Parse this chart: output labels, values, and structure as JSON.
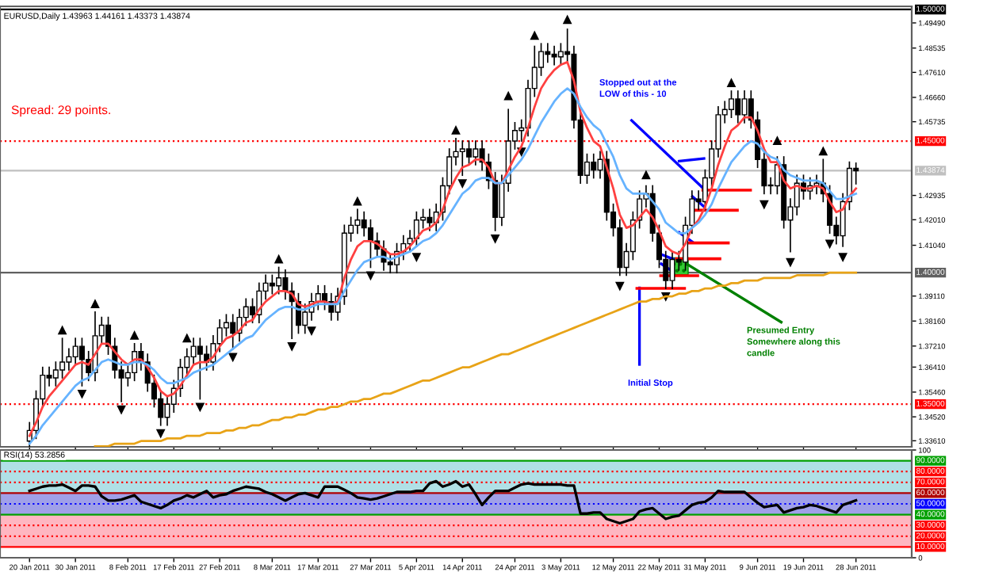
{
  "chart_data": [
    {
      "type": "candlestick",
      "title": "EURUSD,Daily 1.43963 1.44161 1.43373 1.43874",
      "categories": [
        null,
        null,
        null,
        null,
        null,
        null,
        null,
        null,
        null,
        null,
        null,
        null,
        null,
        null,
        null,
        null,
        null,
        null,
        null,
        null,
        null,
        null,
        null,
        null,
        null,
        null,
        null,
        null,
        null,
        null,
        null,
        null,
        null,
        null,
        null,
        null,
        null,
        null,
        null,
        null,
        null,
        null,
        null,
        null,
        null,
        null,
        null,
        null,
        null,
        null,
        null,
        null,
        null,
        null,
        null,
        null,
        null,
        null,
        null,
        null,
        null,
        null,
        null,
        null,
        null,
        null,
        null,
        null,
        null,
        null,
        null,
        null,
        null,
        null,
        null,
        null,
        null,
        null,
        null,
        null,
        null,
        null,
        null,
        null,
        null,
        null,
        null,
        null,
        null,
        null,
        null,
        null,
        null,
        null,
        null,
        null,
        null,
        null,
        null,
        null,
        null,
        null,
        null,
        null,
        null,
        null,
        null,
        null,
        null,
        null,
        null,
        null,
        null,
        null,
        null,
        null,
        null,
        null,
        null,
        null,
        null,
        null,
        null,
        null,
        null,
        null,
        null
      ],
      "series": [
        {
          "color": "#000000",
          "ohlc": [
            [
              1.336,
              1.343,
              1.333,
              1.34
            ],
            [
              1.34,
              1.355,
              1.337,
              1.352
            ],
            [
              1.352,
              1.364,
              1.349,
              1.361
            ],
            [
              1.361,
              1.364,
              1.357,
              1.36
            ],
            [
              1.36,
              1.366,
              1.357,
              1.363
            ],
            [
              1.363,
              1.375,
              1.36,
              1.366
            ],
            [
              1.366,
              1.371,
              1.363,
              1.368
            ],
            [
              1.368,
              1.375,
              1.365,
              1.372
            ],
            [
              1.372,
              1.375,
              1.357,
              1.367
            ],
            [
              1.367,
              1.37,
              1.359,
              1.362
            ],
            [
              1.362,
              1.385,
              1.359,
              1.376
            ],
            [
              1.376,
              1.383,
              1.373,
              1.38
            ],
            [
              1.38,
              1.383,
              1.369,
              1.372
            ],
            [
              1.372,
              1.375,
              1.36,
              1.363
            ],
            [
              1.363,
              1.366,
              1.351,
              1.36
            ],
            [
              1.36,
              1.365,
              1.357,
              1.362
            ],
            [
              1.362,
              1.373,
              1.359,
              1.37
            ],
            [
              1.37,
              1.373,
              1.363,
              1.366
            ],
            [
              1.366,
              1.369,
              1.355,
              1.358
            ],
            [
              1.358,
              1.361,
              1.349,
              1.352
            ],
            [
              1.352,
              1.355,
              1.342,
              1.345
            ],
            [
              1.345,
              1.353,
              1.342,
              1.35
            ],
            [
              1.35,
              1.359,
              1.347,
              1.356
            ],
            [
              1.356,
              1.367,
              1.353,
              1.364
            ],
            [
              1.364,
              1.371,
              1.361,
              1.368
            ],
            [
              1.368,
              1.375,
              1.365,
              1.372
            ],
            [
              1.372,
              1.375,
              1.352,
              1.369
            ],
            [
              1.369,
              1.372,
              1.363,
              1.366
            ],
            [
              1.366,
              1.376,
              1.363,
              1.373
            ],
            [
              1.373,
              1.382,
              1.37,
              1.379
            ],
            [
              1.379,
              1.384,
              1.376,
              1.381
            ],
            [
              1.381,
              1.384,
              1.371,
              1.377
            ],
            [
              1.377,
              1.386,
              1.374,
              1.383
            ],
            [
              1.383,
              1.39,
              1.38,
              1.387
            ],
            [
              1.387,
              1.39,
              1.381,
              1.384
            ],
            [
              1.384,
              1.396,
              1.381,
              1.393
            ],
            [
              1.393,
              1.399,
              1.39,
              1.396
            ],
            [
              1.396,
              1.399,
              1.392,
              1.395
            ],
            [
              1.395,
              1.402,
              1.392,
              1.398
            ],
            [
              1.398,
              1.401,
              1.39,
              1.393
            ],
            [
              1.393,
              1.396,
              1.375,
              1.389
            ],
            [
              1.389,
              1.392,
              1.377,
              1.38
            ],
            [
              1.38,
              1.388,
              1.377,
              1.385
            ],
            [
              1.385,
              1.392,
              1.382,
              1.389
            ],
            [
              1.389,
              1.395,
              1.386,
              1.392
            ],
            [
              1.392,
              1.395,
              1.386,
              1.389
            ],
            [
              1.389,
              1.392,
              1.382,
              1.385
            ],
            [
              1.385,
              1.394,
              1.382,
              1.391
            ],
            [
              1.391,
              1.418,
              1.388,
              1.415
            ],
            [
              1.415,
              1.421,
              1.412,
              1.418
            ],
            [
              1.418,
              1.424,
              1.415,
              1.42
            ],
            [
              1.42,
              1.423,
              1.414,
              1.417
            ],
            [
              1.417,
              1.42,
              1.402,
              1.412
            ],
            [
              1.412,
              1.415,
              1.406,
              1.409
            ],
            [
              1.409,
              1.412,
              1.401,
              1.404
            ],
            [
              1.404,
              1.407,
              1.4,
              1.403
            ],
            [
              1.403,
              1.411,
              1.4,
              1.408
            ],
            [
              1.408,
              1.414,
              1.405,
              1.411
            ],
            [
              1.411,
              1.416,
              1.408,
              1.413
            ],
            [
              1.413,
              1.423,
              1.41,
              1.42
            ],
            [
              1.42,
              1.424,
              1.417,
              1.421
            ],
            [
              1.421,
              1.424,
              1.416,
              1.419
            ],
            [
              1.419,
              1.426,
              1.416,
              1.423
            ],
            [
              1.423,
              1.436,
              1.42,
              1.433
            ],
            [
              1.433,
              1.447,
              1.43,
              1.444
            ],
            [
              1.444,
              1.451,
              1.441,
              1.446
            ],
            [
              1.446,
              1.45,
              1.437,
              1.447
            ],
            [
              1.447,
              1.45,
              1.441,
              1.444
            ],
            [
              1.444,
              1.45,
              1.441,
              1.447
            ],
            [
              1.447,
              1.45,
              1.439,
              1.442
            ],
            [
              1.442,
              1.445,
              1.432,
              1.435
            ],
            [
              1.435,
              1.438,
              1.416,
              1.421
            ],
            [
              1.421,
              1.437,
              1.418,
              1.434
            ],
            [
              1.434,
              1.462,
              1.431,
              1.45
            ],
            [
              1.45,
              1.457,
              1.447,
              1.454
            ],
            [
              1.454,
              1.458,
              1.45,
              1.455
            ],
            [
              1.455,
              1.473,
              1.452,
              1.47
            ],
            [
              1.47,
              1.486,
              1.467,
              1.478
            ],
            [
              1.478,
              1.487,
              1.475,
              1.484
            ],
            [
              1.484,
              1.487,
              1.48,
              1.483
            ],
            [
              1.483,
              1.486,
              1.479,
              1.482
            ],
            [
              1.482,
              1.487,
              1.479,
              1.484
            ],
            [
              1.484,
              1.4925,
              1.48,
              1.483
            ],
            [
              1.483,
              1.486,
              1.455,
              1.458
            ],
            [
              1.458,
              1.461,
              1.434,
              1.437
            ],
            [
              1.437,
              1.445,
              1.434,
              1.442
            ],
            [
              1.442,
              1.445,
              1.436,
              1.439
            ],
            [
              1.439,
              1.446,
              1.436,
              1.443
            ],
            [
              1.443,
              1.446,
              1.42,
              1.423
            ],
            [
              1.423,
              1.426,
              1.414,
              1.417
            ],
            [
              1.417,
              1.42,
              1.399,
              1.402
            ],
            [
              1.402,
              1.411,
              1.399,
              1.408
            ],
            [
              1.408,
              1.423,
              1.405,
              1.42
            ],
            [
              1.42,
              1.431,
              1.417,
              1.428
            ],
            [
              1.428,
              1.433,
              1.425,
              1.43
            ],
            [
              1.43,
              1.433,
              1.412,
              1.415
            ],
            [
              1.415,
              1.418,
              1.402,
              1.405
            ],
            [
              1.405,
              1.408,
              1.394,
              1.397
            ],
            [
              1.397,
              1.408,
              1.394,
              1.405
            ],
            [
              1.405,
              1.408,
              1.401,
              1.404
            ],
            [
              1.404,
              1.421,
              1.401,
              1.418
            ],
            [
              1.418,
              1.431,
              1.415,
              1.428
            ],
            [
              1.428,
              1.431,
              1.424,
              1.427
            ],
            [
              1.427,
              1.439,
              1.424,
              1.436
            ],
            [
              1.436,
              1.45,
              1.433,
              1.447
            ],
            [
              1.447,
              1.463,
              1.444,
              1.46
            ],
            [
              1.46,
              1.465,
              1.457,
              1.462
            ],
            [
              1.462,
              1.469,
              1.459,
              1.466
            ],
            [
              1.466,
              1.469,
              1.457,
              1.46
            ],
            [
              1.46,
              1.469,
              1.457,
              1.466
            ],
            [
              1.466,
              1.469,
              1.455,
              1.458
            ],
            [
              1.458,
              1.461,
              1.44,
              1.443
            ],
            [
              1.443,
              1.446,
              1.43,
              1.433
            ],
            [
              1.433,
              1.436,
              1.43,
              1.433
            ],
            [
              1.433,
              1.444,
              1.43,
              1.441
            ],
            [
              1.441,
              1.444,
              1.417,
              1.42
            ],
            [
              1.42,
              1.428,
              1.408,
              1.425
            ],
            [
              1.425,
              1.437,
              1.422,
              1.434
            ],
            [
              1.434,
              1.437,
              1.428,
              1.431
            ],
            [
              1.431,
              1.436,
              1.428,
              1.433
            ],
            [
              1.433,
              1.437,
              1.43,
              1.434
            ],
            [
              1.434,
              1.443,
              1.427,
              1.43
            ],
            [
              1.43,
              1.433,
              1.415,
              1.418
            ],
            [
              1.418,
              1.421,
              1.411,
              1.414
            ],
            [
              1.414,
              1.43,
              1.41,
              1.427
            ],
            [
              1.427,
              1.442,
              1.424,
              1.43963
            ],
            [
              1.43963,
              1.44161,
              1.43373,
              1.43874
            ]
          ]
        },
        {
          "type": "line",
          "color": "#ff4040",
          "values": [
            1.338,
            1.343,
            1.349,
            1.353,
            1.356,
            1.359,
            1.362,
            1.365,
            1.366,
            1.365,
            1.369,
            1.373,
            1.373,
            1.37,
            1.367,
            1.365,
            1.367,
            1.367,
            1.364,
            1.36,
            1.355,
            1.353,
            1.354,
            1.357,
            1.361,
            1.365,
            1.366,
            1.366,
            1.368,
            1.372,
            1.375,
            1.376,
            1.378,
            1.381,
            1.382,
            1.386,
            1.389,
            1.391,
            1.393,
            1.393,
            1.392,
            1.388,
            1.387,
            1.388,
            1.389,
            1.389,
            1.388,
            1.389,
            1.398,
            1.405,
            1.41,
            1.412,
            1.412,
            1.411,
            1.409,
            1.407,
            1.407,
            1.408,
            1.41,
            1.413,
            1.416,
            1.417,
            1.419,
            1.424,
            1.431,
            1.436,
            1.44,
            1.441,
            1.443,
            1.443,
            1.44,
            1.434,
            1.434,
            1.439,
            1.444,
            1.448,
            1.455,
            1.463,
            1.47,
            1.474,
            1.477,
            1.479,
            1.48,
            1.473,
            1.461,
            1.455,
            1.45,
            1.448,
            1.44,
            1.432,
            1.422,
            1.417,
            1.418,
            1.421,
            1.424,
            1.421,
            1.416,
            1.41,
            1.408,
            1.407,
            1.411,
            1.417,
            1.42,
            1.425,
            1.432,
            1.441,
            1.448,
            1.454,
            1.456,
            1.459,
            1.459,
            1.454,
            1.447,
            1.442,
            1.442,
            1.435,
            1.432,
            1.433,
            1.432,
            1.432,
            1.433,
            1.432,
            1.427,
            1.423,
            1.424,
            1.429,
            1.432
          ]
        },
        {
          "type": "line",
          "color": "#66b3ff",
          "values": [
            1.335,
            1.338,
            1.342,
            1.345,
            1.348,
            1.351,
            1.354,
            1.357,
            1.359,
            1.36,
            1.363,
            1.366,
            1.367,
            1.366,
            1.365,
            1.365,
            1.366,
            1.366,
            1.365,
            1.363,
            1.36,
            1.358,
            1.358,
            1.359,
            1.36,
            1.362,
            1.363,
            1.364,
            1.365,
            1.367,
            1.369,
            1.371,
            1.373,
            1.375,
            1.376,
            1.379,
            1.382,
            1.384,
            1.386,
            1.387,
            1.387,
            1.386,
            1.386,
            1.387,
            1.388,
            1.388,
            1.388,
            1.388,
            1.393,
            1.397,
            1.401,
            1.404,
            1.405,
            1.406,
            1.406,
            1.405,
            1.406,
            1.407,
            1.408,
            1.41,
            1.412,
            1.413,
            1.415,
            1.418,
            1.422,
            1.426,
            1.43,
            1.432,
            1.435,
            1.436,
            1.436,
            1.434,
            1.434,
            1.437,
            1.44,
            1.443,
            1.447,
            1.452,
            1.457,
            1.461,
            1.465,
            1.468,
            1.47,
            1.468,
            1.463,
            1.459,
            1.456,
            1.454,
            1.449,
            1.444,
            1.437,
            1.432,
            1.43,
            1.43,
            1.43,
            1.427,
            1.424,
            1.419,
            1.417,
            1.415,
            1.415,
            1.417,
            1.419,
            1.422,
            1.426,
            1.432,
            1.437,
            1.442,
            1.445,
            1.448,
            1.45,
            1.449,
            1.446,
            1.444,
            1.443,
            1.439,
            1.437,
            1.436,
            1.435,
            1.435,
            1.435,
            1.434,
            1.431,
            1.428,
            1.428,
            1.429,
            1.43
          ]
        },
        {
          "type": "line",
          "color": "#e8a317",
          "values": [
            null,
            null,
            null,
            null,
            null,
            null,
            null,
            null,
            null,
            null,
            1.334,
            1.334,
            1.334,
            1.335,
            1.335,
            1.335,
            1.335,
            1.336,
            1.336,
            1.336,
            1.336,
            1.337,
            1.337,
            1.337,
            1.338,
            1.338,
            1.338,
            1.339,
            1.339,
            1.339,
            1.34,
            1.34,
            1.341,
            1.341,
            1.342,
            1.342,
            1.343,
            1.344,
            1.344,
            1.345,
            1.345,
            1.346,
            1.346,
            1.347,
            1.348,
            1.348,
            1.349,
            1.349,
            1.35,
            1.351,
            1.351,
            1.352,
            1.352,
            1.353,
            1.354,
            1.354,
            1.355,
            1.356,
            1.357,
            1.358,
            1.359,
            1.359,
            1.36,
            1.361,
            1.362,
            1.363,
            1.364,
            1.364,
            1.365,
            1.366,
            1.367,
            1.368,
            1.369,
            1.369,
            1.37,
            1.371,
            1.372,
            1.373,
            1.374,
            1.375,
            1.376,
            1.377,
            1.378,
            1.379,
            1.38,
            1.381,
            1.382,
            1.383,
            1.384,
            1.385,
            1.386,
            1.387,
            1.388,
            1.389,
            1.389,
            1.39,
            1.39,
            1.391,
            1.391,
            1.392,
            1.392,
            1.393,
            1.393,
            1.394,
            1.394,
            1.395,
            1.395,
            1.396,
            1.396,
            1.397,
            1.397,
            1.397,
            1.398,
            1.398,
            1.398,
            1.398,
            1.398,
            1.399,
            1.399,
            1.399,
            1.399,
            1.399,
            1.4,
            1.4,
            1.4,
            1.4,
            1.4
          ]
        },
        {
          "type": "scatter",
          "color": "#000000",
          "marker": "triangle",
          "values": [
            null,
            null,
            null,
            null,
            null,
            1.378,
            null,
            null,
            null,
            null,
            1.388,
            null,
            null,
            null,
            null,
            null,
            1.376,
            null,
            null,
            null,
            null,
            null,
            null,
            null,
            1.375,
            null,
            null,
            null,
            null,
            null,
            null,
            null,
            null,
            null,
            null,
            null,
            null,
            null,
            1.405,
            null,
            null,
            null,
            null,
            null,
            null,
            null,
            null,
            null,
            null,
            null,
            1.427,
            null,
            null,
            null,
            null,
            null,
            null,
            null,
            null,
            null,
            null,
            null,
            null,
            null,
            null,
            1.454,
            null,
            null,
            null,
            null,
            null,
            null,
            null,
            1.467,
            null,
            null,
            null,
            1.49,
            null,
            null,
            null,
            null,
            1.496,
            null,
            null,
            null,
            null,
            null,
            null,
            null,
            null,
            null,
            null,
            null,
            1.437,
            null,
            null,
            null,
            null,
            null,
            null,
            null,
            null,
            null,
            null,
            null,
            null,
            1.472,
            null,
            null,
            null,
            null,
            null,
            null,
            1.45,
            null,
            null,
            null,
            null,
            null,
            null,
            1.446,
            null,
            null,
            null,
            null,
            null
          ]
        },
        {
          "type": "scatter",
          "color": "#000000",
          "marker": "triangle",
          "values": [
            null,
            null,
            null,
            null,
            null,
            null,
            null,
            null,
            1.354,
            null,
            null,
            null,
            null,
            null,
            1.348,
            null,
            null,
            null,
            null,
            null,
            1.339,
            null,
            null,
            null,
            null,
            null,
            1.349,
            null,
            null,
            null,
            null,
            1.368,
            null,
            null,
            null,
            null,
            null,
            null,
            null,
            null,
            1.372,
            null,
            null,
            1.378,
            null,
            null,
            null,
            null,
            null,
            null,
            null,
            null,
            1.399,
            null,
            null,
            null,
            null,
            null,
            null,
            1.406,
            null,
            null,
            null,
            null,
            null,
            null,
            1.434,
            null,
            null,
            null,
            null,
            1.413,
            null,
            null,
            null,
            1.446,
            null,
            null,
            null,
            null,
            null,
            null,
            null,
            null,
            null,
            null,
            null,
            null,
            null,
            null,
            1.395,
            null,
            null,
            null,
            null,
            null,
            null,
            1.391,
            null,
            null,
            null,
            null,
            null,
            null,
            null,
            null,
            null,
            null,
            null,
            null,
            null,
            null,
            1.426,
            null,
            null,
            null,
            1.404,
            null,
            null,
            null,
            null,
            null,
            1.411,
            null,
            1.406,
            null,
            null
          ]
        }
      ],
      "ylim": [
        1.3338,
        1.5012
      ],
      "yticks": [
        {
          "value": 1.4949,
          "label": "1.49490"
        },
        {
          "value": 1.48535,
          "label": "1.48535"
        },
        {
          "value": 1.4761,
          "label": "1.47610"
        },
        {
          "value": 1.4666,
          "label": "1.46660"
        },
        {
          "value": 1.45735,
          "label": "1.45735"
        },
        {
          "value": 1.42935,
          "label": "1.42935"
        },
        {
          "value": 1.4201,
          "label": "1.42010"
        },
        {
          "value": 1.4104,
          "label": "1.41040"
        },
        {
          "value": 1.3911,
          "label": "1.39110"
        },
        {
          "value": 1.3816,
          "label": "1.38160"
        },
        {
          "value": 1.3721,
          "label": "1.37210"
        },
        {
          "value": 1.3641,
          "label": "1.36410"
        },
        {
          "value": 1.3546,
          "label": "1.35460"
        },
        {
          "value": 1.3452,
          "label": "1.34520"
        },
        {
          "value": 1.3361,
          "label": "1.33610"
        }
      ],
      "ref_lines": [
        {
          "axis": "y",
          "value": 1.5,
          "label": "1.50000",
          "color": "#000000",
          "line_style": "solid"
        },
        {
          "axis": "y",
          "value": 1.45,
          "label": "1.45000",
          "color": "#ff0000",
          "line_style": "dotted"
        },
        {
          "axis": "y",
          "value": 1.43874,
          "label": "1.43874",
          "color": "#c0c0c0",
          "line_style": "solid"
        },
        {
          "axis": "y",
          "value": 1.4,
          "label": "1.40000",
          "color": "#606060",
          "line_style": "solid"
        },
        {
          "axis": "y",
          "value": 1.35,
          "label": "1.35000",
          "color": "#ff0000",
          "line_style": "dotted"
        }
      ],
      "annotations": [
        "Spread: 29 points.",
        "Stopped out at the\nLOW of this - 10",
        "Presumed Entry\nSomewhere along this\ncandle",
        "Initial Stop"
      ],
      "tick_labels": "y"
    },
    {
      "type": "line",
      "title": "RSI(14) 53.2856",
      "categories": [
        "20 Jan 2011",
        null,
        null,
        null,
        null,
        null,
        null,
        "30 Jan 2011",
        null,
        null,
        null,
        null,
        null,
        null,
        null,
        "8 Feb 2011",
        null,
        null,
        null,
        null,
        null,
        null,
        "17 Feb 2011",
        null,
        null,
        null,
        null,
        null,
        null,
        "27 Feb 2011",
        null,
        null,
        null,
        null,
        null,
        null,
        null,
        "8 Mar 2011",
        null,
        null,
        null,
        null,
        null,
        null,
        "17 Mar 2011",
        null,
        null,
        null,
        null,
        null,
        null,
        null,
        "27 Mar 2011",
        null,
        null,
        null,
        null,
        null,
        null,
        "5 Apr 2011",
        null,
        null,
        null,
        null,
        null,
        null,
        "14 Apr 2011",
        null,
        null,
        null,
        null,
        null,
        null,
        null,
        "24 Apr 2011",
        null,
        null,
        null,
        null,
        null,
        null,
        "3 May 2011",
        null,
        null,
        null,
        null,
        null,
        null,
        null,
        "12 May 2011",
        null,
        null,
        null,
        null,
        null,
        null,
        "22 May 2011",
        null,
        null,
        null,
        null,
        null,
        null,
        "31 May 2011",
        null,
        null,
        null,
        null,
        null,
        null,
        null,
        "9 Jun 2011",
        null,
        null,
        null,
        null,
        null,
        null,
        "19 Jun 2011",
        null,
        null,
        null,
        null,
        null,
        null,
        null,
        "28 Jun 2011"
      ],
      "series": [
        {
          "color": "#000000",
          "values": [
            62,
            64,
            66,
            67,
            67,
            68,
            65,
            62,
            67,
            67,
            66,
            57,
            53,
            53,
            54,
            56,
            58,
            52,
            50,
            48,
            46,
            49,
            53,
            55,
            58,
            56,
            59,
            62,
            56,
            58,
            59,
            62,
            64,
            66,
            65,
            64,
            61,
            59,
            56,
            53,
            56,
            59,
            60,
            58,
            56,
            66,
            66,
            66,
            63,
            60,
            56,
            55,
            54,
            55,
            57,
            59,
            61,
            61,
            61,
            62,
            62,
            69,
            71,
            66,
            68,
            71,
            66,
            68,
            59,
            49,
            56,
            62,
            62,
            62,
            65,
            68,
            69,
            68,
            68,
            68,
            68,
            68,
            67,
            67,
            41,
            41,
            42,
            42,
            36,
            34,
            32,
            34,
            36,
            43,
            45,
            46,
            41,
            36,
            38,
            39,
            44,
            49,
            51,
            52,
            56,
            62,
            61,
            61,
            61,
            61,
            56,
            51,
            47,
            48,
            49,
            42,
            44,
            46,
            47,
            49,
            48,
            46,
            44,
            42,
            49,
            51,
            53.2856
          ]
        }
      ],
      "ylim": [
        0,
        100
      ],
      "yticks": [
        0,
        100
      ],
      "bands": [
        {
          "axis": "y",
          "from": 60,
          "to": 90,
          "color": "#b0e0e6"
        },
        {
          "axis": "y",
          "from": 40,
          "to": 60,
          "color": "#a0a0e8"
        },
        {
          "axis": "y",
          "from": 10,
          "to": 40,
          "color": "#ffb6c1"
        }
      ],
      "ref_lines": [
        {
          "axis": "y",
          "value": 90,
          "label": "90.0000",
          "color": "#00a000",
          "line_style": "solid"
        },
        {
          "axis": "y",
          "value": 80,
          "label": "80.0000",
          "color": "#ff0000",
          "line_style": "dotted"
        },
        {
          "axis": "y",
          "value": 70,
          "label": "70.0000",
          "color": "#ff0000",
          "line_style": "dotted"
        },
        {
          "axis": "y",
          "value": 60,
          "label": "60.0000",
          "color": "#b00000",
          "line_style": "solid"
        },
        {
          "axis": "y",
          "value": 50,
          "label": "50.0000",
          "color": "#0000ff",
          "line_style": "dotted"
        },
        {
          "axis": "y",
          "value": 40,
          "label": "40.0000",
          "color": "#00a000",
          "line_style": "solid"
        },
        {
          "axis": "y",
          "value": 30,
          "label": "30.0000",
          "color": "#ff0000",
          "line_style": "dotted"
        },
        {
          "axis": "y",
          "value": 20,
          "label": "20.0000",
          "color": "#ff0000",
          "line_style": "dotted"
        },
        {
          "axis": "y",
          "value": 10,
          "label": "10.0000",
          "color": "#ff0000",
          "line_style": "solid"
        }
      ]
    }
  ]
}
